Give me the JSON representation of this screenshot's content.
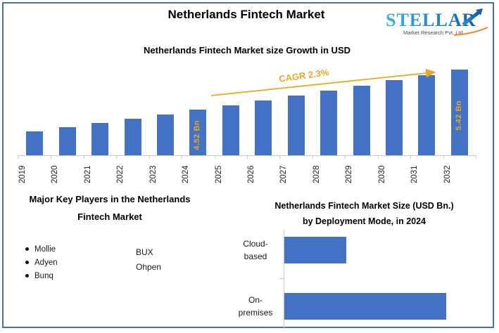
{
  "header": {
    "title": "Netherlands Fintech Market",
    "logo": {
      "brand": "STELLAR",
      "tagline": "Market Research Pvt. Ltd."
    }
  },
  "colors": {
    "bar_blue": "#4472c4",
    "accent_gold": "#e9a820",
    "frame_blue": "#4472a8",
    "axis_gray": "#c9c9c9",
    "logo_blue_light": "#3eb0e6",
    "logo_blue_dark": "#1260a8",
    "logo_orange": "#f5821f"
  },
  "chart_data": [
    {
      "id": "growth",
      "type": "bar",
      "title": "Netherlands Fintech Market size Growth in USD",
      "unit": "USD Bn",
      "categories": [
        "2019",
        "2020",
        "2021",
        "2022",
        "2023",
        "2024",
        "2025",
        "2026",
        "2027",
        "2028",
        "2029",
        "2030",
        "2031",
        "2032"
      ],
      "values": [
        4.03,
        4.13,
        4.22,
        4.32,
        4.42,
        4.52,
        4.62,
        4.73,
        4.84,
        4.95,
        5.06,
        5.18,
        5.3,
        5.42
      ],
      "values_note": "Only 2024 (4.52 Bn) and 2032 (5.42 Bn) are labeled; other values estimated from bar heights at CAGR 2.3%",
      "ylim": [
        3.5,
        5.5
      ],
      "grid": false,
      "legend": false,
      "xlabel": "",
      "ylabel": "",
      "x_tick_rotation": "vertical",
      "bar_color": "#4472c4",
      "data_labels": [
        {
          "category": "2024",
          "label": "4.52 Bn"
        },
        {
          "category": "2032",
          "label": "5.42 Bn"
        }
      ],
      "annotation": {
        "text": "CAGR 2.3%",
        "color": "#e9a820",
        "shape": "rising-arrow"
      }
    },
    {
      "id": "deployment",
      "type": "bar",
      "orientation": "horizontal",
      "title": "Netherlands Fintech Market Size (USD Bn.) by Deployment Mode, in 2024",
      "title_line1": "Netherlands Fintech Market Size (USD Bn.)",
      "title_line2": "by Deployment Mode, in 2024",
      "categories": [
        "Cloud-based",
        "On-premises"
      ],
      "category_lines": [
        [
          "Cloud-",
          "based"
        ],
        [
          "On-",
          "premises"
        ]
      ],
      "values": [
        1.25,
        3.27
      ],
      "values_note": "No axis or data labels shown; values estimated from relative bar lengths (ratio ~0.38:1) against 4.52 Bn total",
      "grid": false,
      "legend": false,
      "bar_color": "#4472c4"
    }
  ],
  "key_players": {
    "heading_line1": "Major Key Players in the Netherlands",
    "heading_line2": "Fintech Market",
    "bulleted": [
      "Mollie",
      "Adyen",
      "Bunq"
    ],
    "plain": [
      "BUX",
      "Ohpen"
    ]
  }
}
